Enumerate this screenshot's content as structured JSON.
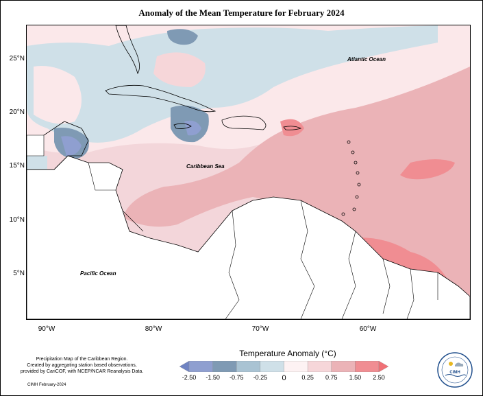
{
  "title": "Anomaly of the Mean Temperature for February 2024",
  "map": {
    "labels": {
      "atlantic": "Atlantic Ocean",
      "caribbean": "Caribbean Sea",
      "pacific": "Pacific Ocean"
    },
    "lat_ticks": [
      "25°N",
      "20°N",
      "15°N",
      "10°N",
      "5°N"
    ],
    "lon_ticks": [
      "90°W",
      "80°W",
      "70°W",
      "60°W"
    ],
    "extent": {
      "lon_min": -92,
      "lon_max": -50.5,
      "lat_min": 1.5,
      "lat_max": 28.5
    }
  },
  "legend": {
    "title": "Temperature Anomaly (°C)",
    "labels": [
      "-2.50",
      "-1.50",
      "-0.75",
      "-0.25",
      "0",
      "0.25",
      "0.75",
      "1.50",
      "2.50"
    ],
    "colors": [
      "#6f83c2",
      "#8f9fd0",
      "#7f9ab4",
      "#a9c3d3",
      "#cfe0e8",
      "#fdf2f3",
      "#f6d6d9",
      "#ebb3b7",
      "#f08d92",
      "#f07076"
    ]
  },
  "credit": {
    "lines": [
      "Precipitation Map of the Caribbean Region.",
      "Created by aggregating station based observations,",
      "provided by CariCOF, with NCEP/NCAR Reanalysis Data."
    ],
    "date": "CIMH February-2024"
  },
  "logo": {
    "text": "CIMH"
  }
}
